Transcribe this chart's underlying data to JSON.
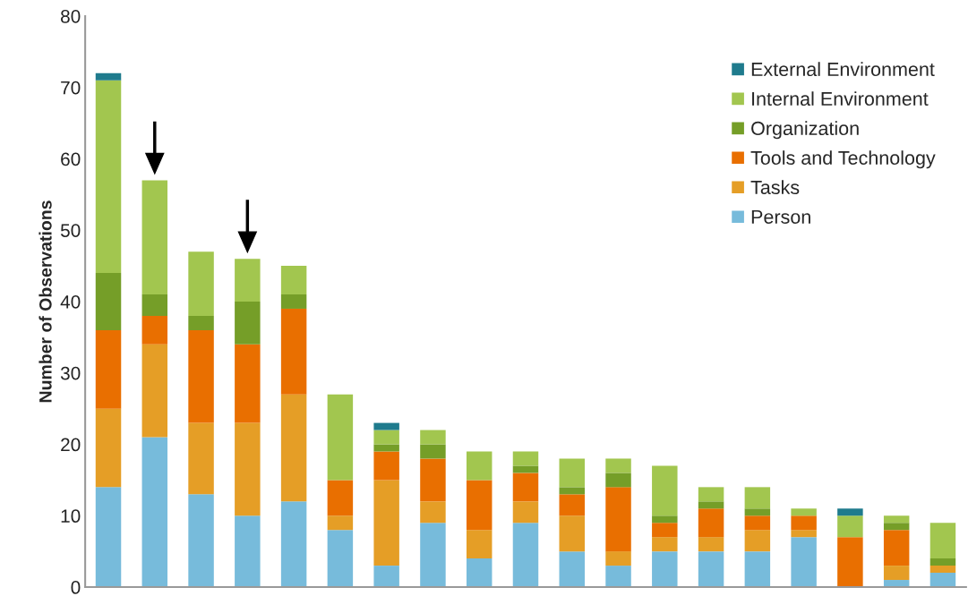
{
  "chart_data": {
    "type": "bar",
    "stacked": true,
    "ylabel": "Number of Observations",
    "categories": [
      null,
      null,
      null,
      null,
      null,
      null,
      null,
      null,
      null,
      null,
      null,
      null,
      null,
      null,
      null,
      null,
      null,
      null,
      null
    ],
    "series": [
      {
        "name": "Person",
        "color": "#77bbdb",
        "values": [
          14,
          21,
          13,
          10,
          12,
          8,
          3,
          9,
          4,
          9,
          5,
          3,
          5,
          5,
          5,
          7,
          0,
          1,
          2
        ]
      },
      {
        "name": "Tasks",
        "color": "#e59e26",
        "values": [
          11,
          13,
          10,
          13,
          15,
          2,
          12,
          3,
          4,
          3,
          5,
          2,
          2,
          2,
          3,
          1,
          0,
          2,
          1
        ]
      },
      {
        "name": "Tools and Technology",
        "color": "#e96f00",
        "values": [
          11,
          4,
          13,
          11,
          12,
          5,
          4,
          6,
          7,
          4,
          3,
          9,
          2,
          4,
          2,
          2,
          7,
          5,
          0
        ]
      },
      {
        "name": "Organization",
        "color": "#759e28",
        "values": [
          8,
          3,
          2,
          6,
          2,
          0,
          1,
          2,
          0,
          1,
          1,
          2,
          1,
          1,
          1,
          0,
          0,
          1,
          1
        ]
      },
      {
        "name": "Internal Environment",
        "color": "#a2c64f",
        "values": [
          27,
          16,
          9,
          6,
          4,
          12,
          2,
          2,
          4,
          2,
          4,
          2,
          7,
          2,
          3,
          1,
          3,
          1,
          5
        ]
      },
      {
        "name": "External Environment",
        "color": "#1f7b8d",
        "values": [
          1,
          0,
          0,
          0,
          0,
          0,
          1,
          0,
          0,
          0,
          0,
          0,
          0,
          0,
          0,
          0,
          1,
          0,
          0
        ]
      }
    ],
    "ylim": [
      0,
      80
    ],
    "yticks": [
      0,
      10,
      20,
      30,
      40,
      50,
      60,
      70,
      80
    ],
    "grid": false,
    "legend": "top right"
  }
}
